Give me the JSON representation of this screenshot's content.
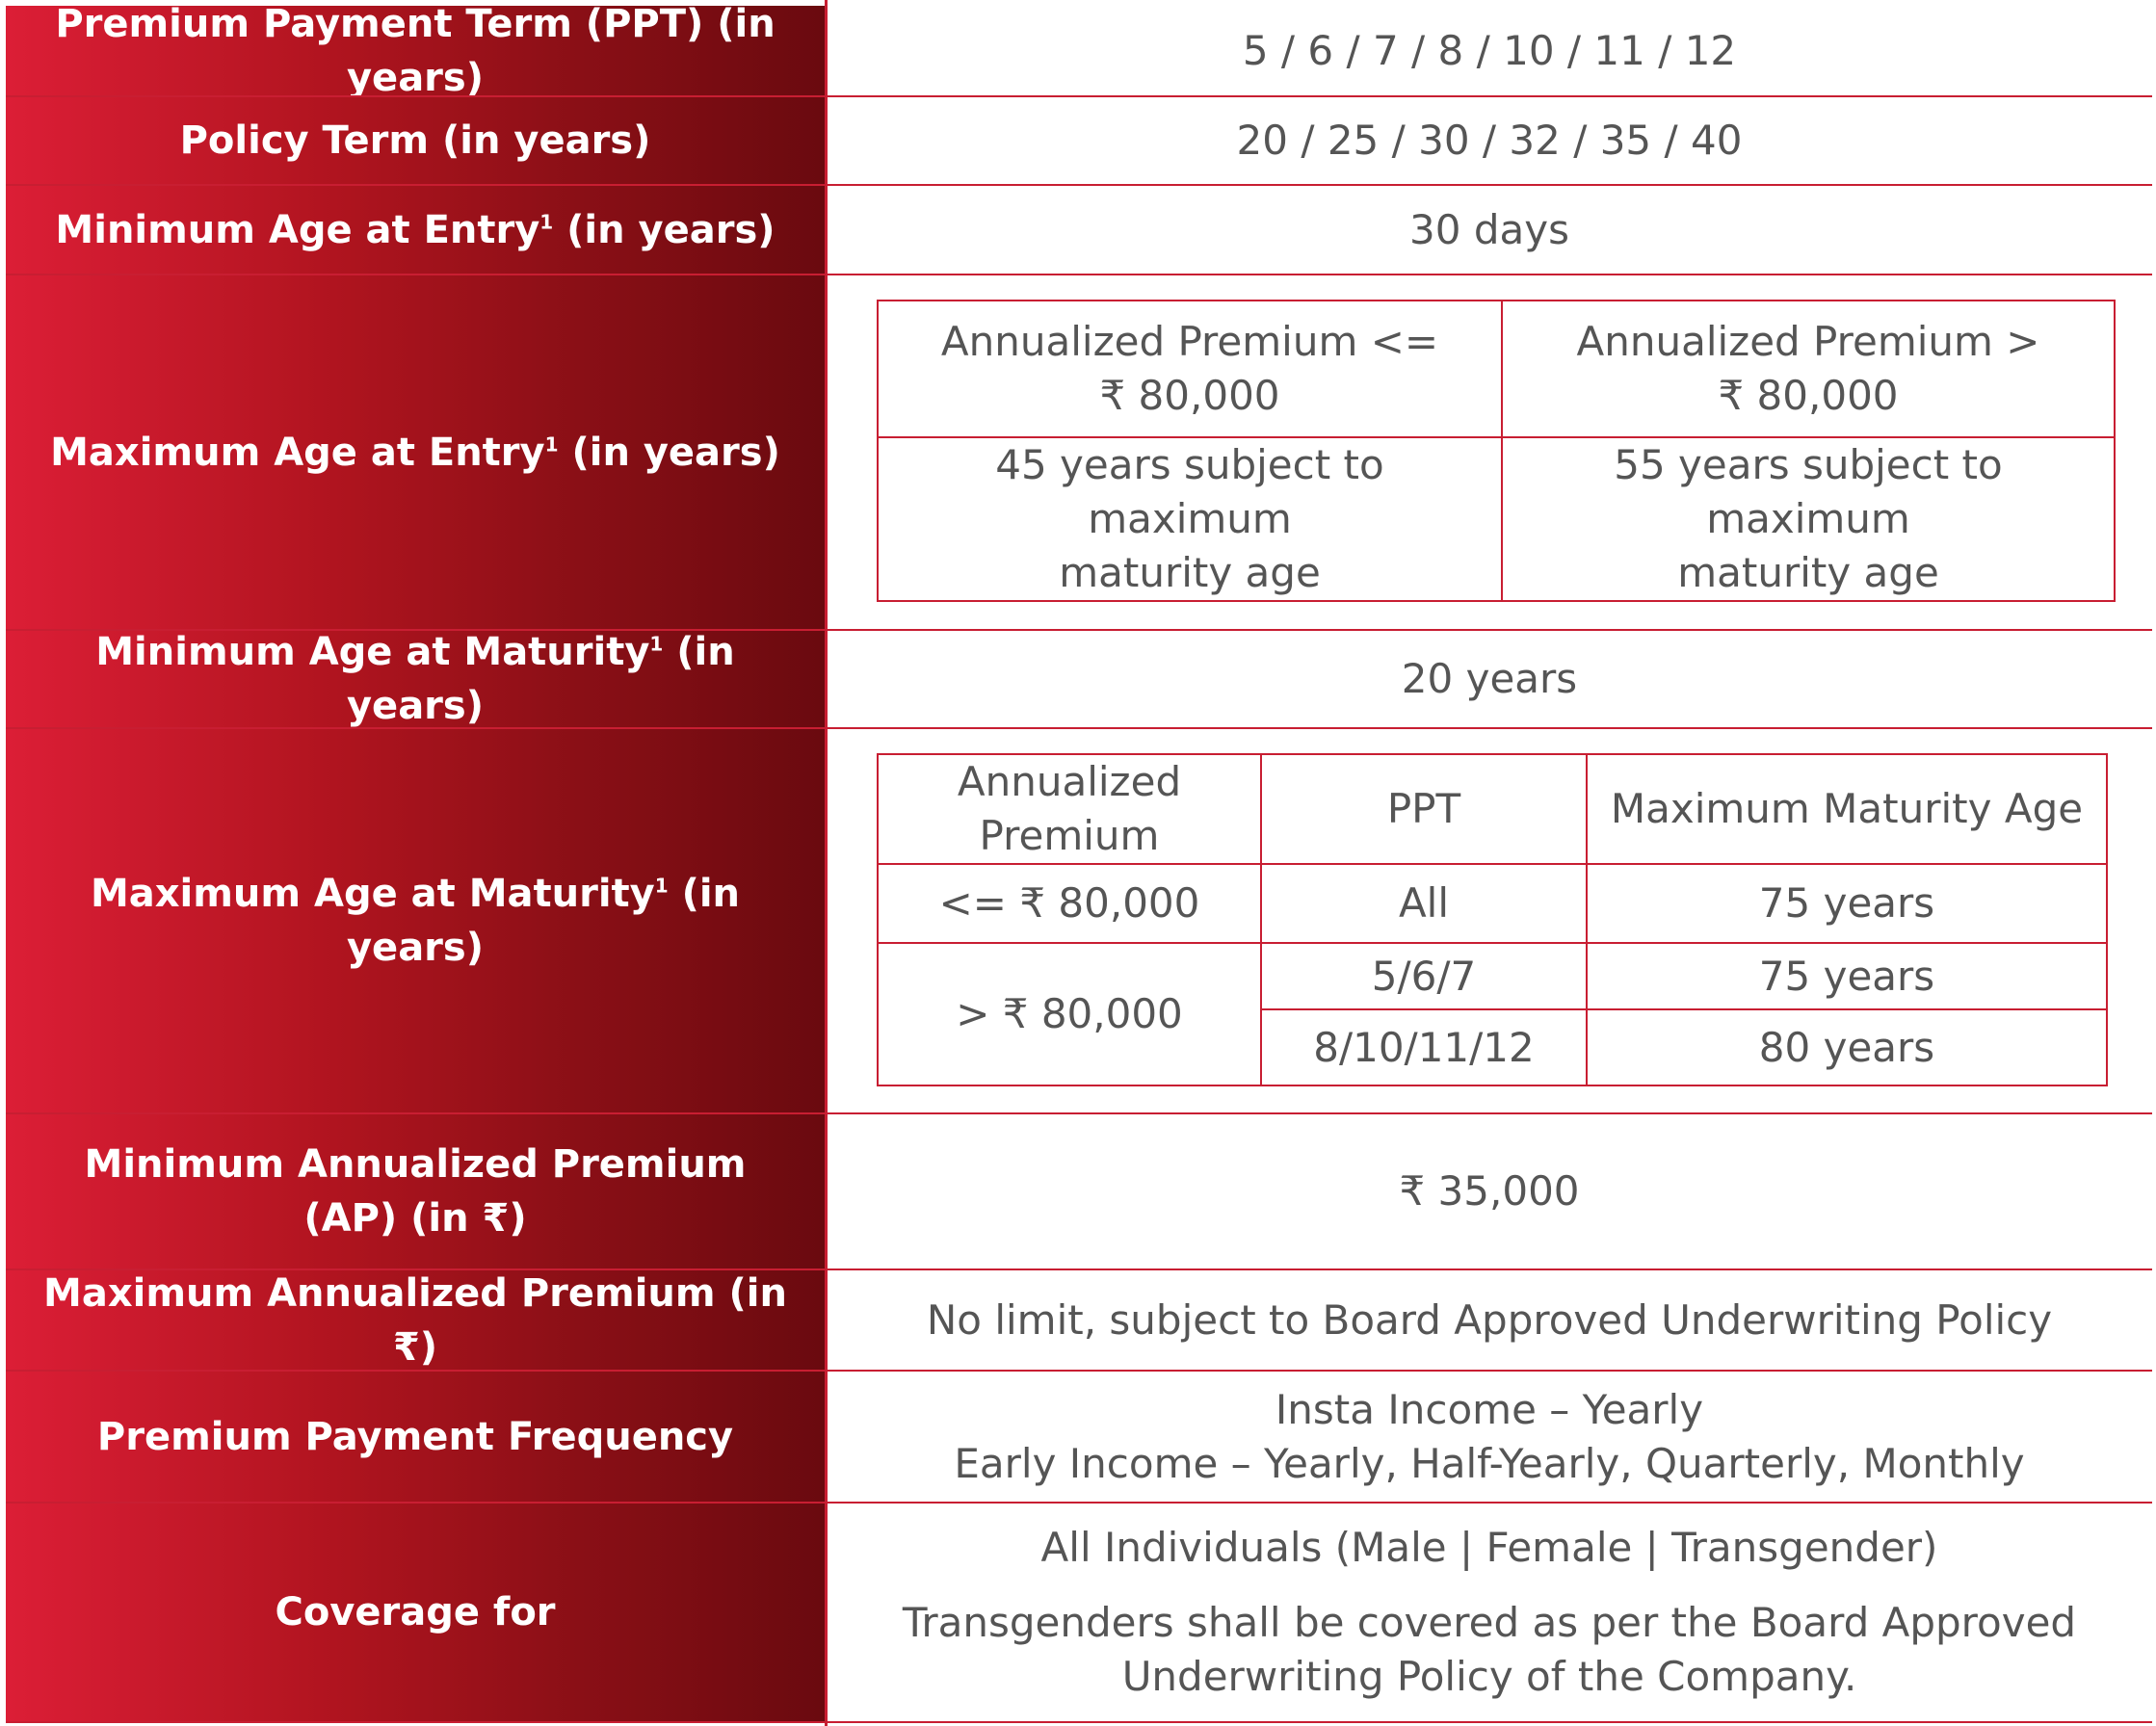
{
  "rows": {
    "ppt": {
      "label": "Premium Payment Term (PPT) (in years)",
      "value": "5 / 6 / 7 / 8 / 10 / 11 / 12"
    },
    "policy_term": {
      "label": "Policy Term (in years)",
      "value": "20 / 25 / 30 / 32 / 35 / 40"
    },
    "min_entry": {
      "label": "Minimum Age at Entry",
      "sup": "1",
      "suffix": " (in years)",
      "value": "30 days"
    },
    "max_entry": {
      "label": "Maximum Age at Entry",
      "sup": "1",
      "suffix": " (in years)",
      "headers": [
        "Annualized Premium <=",
        "₹ 80,000",
        "Annualized Premium >",
        "₹ 80,000"
      ],
      "cells": [
        "45 years subject to maximum",
        "maturity age",
        "55 years subject to maximum",
        "maturity age"
      ]
    },
    "min_maturity": {
      "label": "Minimum Age at Maturity",
      "sup": "1",
      "suffix": " (in years)",
      "value": "20 years"
    },
    "max_maturity": {
      "label": "Maximum Age at Maturity",
      "sup": "1",
      "suffix": " (in years)",
      "headers": [
        "Annualized",
        "Premium",
        "PPT",
        "Maximum Maturity Age"
      ],
      "r1": [
        "<= ₹ 80,000",
        "All",
        "75 years"
      ],
      "r2": [
        "> ₹ 80,000",
        "5/6/7",
        "75 years"
      ],
      "r3": [
        "8/10/11/12",
        "80 years"
      ]
    },
    "min_ap": {
      "label_l1": "Minimum Annualized Premium",
      "label_l2": "(AP) (in ₹)",
      "value": "₹ 35,000"
    },
    "max_ap": {
      "label": "Maximum Annualized Premium (in ₹)",
      "value": "No limit, subject to Board Approved Underwriting Policy"
    },
    "frequency": {
      "label": "Premium Payment Frequency",
      "line1": "Insta Income – Yearly",
      "line2": "Early Income – Yearly, Half-Yearly, Quarterly, Monthly"
    },
    "coverage": {
      "label": "Coverage for",
      "line1": "All Individuals (Male | Female | Transgender)",
      "line2": "Transgenders shall be covered as per the Board Approved",
      "line3": "Underwriting Policy of the Company."
    }
  },
  "colors": {
    "label_gradient_start": "#dc1e36",
    "label_gradient_end": "#6a0a0f",
    "border": "#c81e32",
    "value_text": "#555555"
  }
}
